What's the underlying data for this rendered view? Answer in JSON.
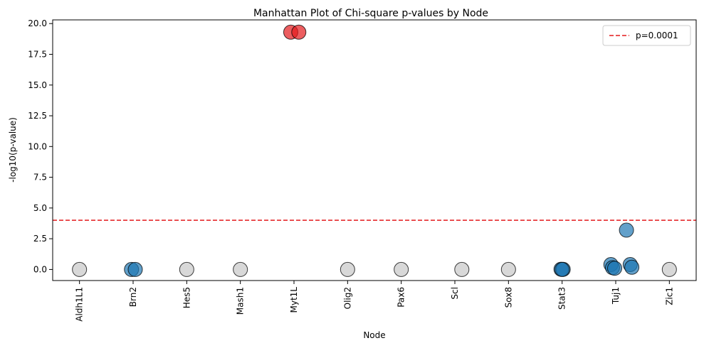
{
  "chart_data": {
    "type": "scatter",
    "title": "Manhattan Plot of Chi-square p-values by Node",
    "xlabel": "Node",
    "ylabel": "-log10(p-value)",
    "categories": [
      "Aldh1L1",
      "Brn2",
      "Hes5",
      "Mash1",
      "Myt1L",
      "Olig2",
      "Pax6",
      "Scl",
      "Sox8",
      "Stat3",
      "Tuj1",
      "Zic1"
    ],
    "ylim": [
      -0.9,
      20.3
    ],
    "yticks": [
      0.0,
      2.5,
      5.0,
      7.5,
      10.0,
      12.5,
      15.0,
      17.5,
      20.0
    ],
    "ytick_labels": [
      "0.0",
      "2.5",
      "5.0",
      "7.5",
      "10.0",
      "12.5",
      "15.0",
      "17.5",
      "20.0"
    ],
    "threshold": {
      "value": 4.0,
      "label": "p=0.0001",
      "color": "#e31a1c"
    },
    "legend_position": "top-right",
    "grid": false,
    "colors": {
      "significant": "#e41a1c",
      "nominal": "#1f77b4",
      "nonsignificant": "#c8c8c8"
    },
    "points": [
      {
        "category": "Aldh1L1",
        "offset": 0.0,
        "y": 0.0,
        "group": "nonsignificant"
      },
      {
        "category": "Brn2",
        "offset": -0.03,
        "y": 0.0,
        "group": "nominal"
      },
      {
        "category": "Brn2",
        "offset": 0.04,
        "y": 0.0,
        "group": "nominal"
      },
      {
        "category": "Hes5",
        "offset": 0.0,
        "y": 0.0,
        "group": "nonsignificant"
      },
      {
        "category": "Mash1",
        "offset": 0.0,
        "y": 0.0,
        "group": "nonsignificant"
      },
      {
        "category": "Myt1L",
        "offset": -0.06,
        "y": 19.3,
        "group": "significant"
      },
      {
        "category": "Myt1L",
        "offset": 0.09,
        "y": 19.3,
        "group": "significant"
      },
      {
        "category": "Olig2",
        "offset": 0.0,
        "y": 0.0,
        "group": "nonsignificant"
      },
      {
        "category": "Pax6",
        "offset": 0.0,
        "y": 0.0,
        "group": "nonsignificant"
      },
      {
        "category": "Scl",
        "offset": 0.13,
        "y": 0.0,
        "group": "nonsignificant"
      },
      {
        "category": "Sox8",
        "offset": 0.0,
        "y": 0.0,
        "group": "nonsignificant"
      },
      {
        "category": "Stat3",
        "offset": -0.02,
        "y": 0.02,
        "group": "nominal"
      },
      {
        "category": "Stat3",
        "offset": 0.02,
        "y": 0.01,
        "group": "nominal"
      },
      {
        "category": "Stat3",
        "offset": 0.0,
        "y": 0.0,
        "group": "nominal"
      },
      {
        "category": "Tuj1",
        "offset": -0.09,
        "y": 0.4,
        "group": "nominal"
      },
      {
        "category": "Tuj1",
        "offset": 0.2,
        "y": 3.2,
        "group": "nominal"
      },
      {
        "category": "Tuj1",
        "offset": 0.27,
        "y": 0.4,
        "group": "nominal"
      },
      {
        "category": "Tuj1",
        "offset": -0.06,
        "y": 0.15,
        "group": "nominal"
      },
      {
        "category": "Tuj1",
        "offset": 0.3,
        "y": 0.18,
        "group": "nominal"
      },
      {
        "category": "Tuj1",
        "offset": -0.02,
        "y": 0.1,
        "group": "nominal"
      },
      {
        "category": "Zic1",
        "offset": 0.0,
        "y": 0.0,
        "group": "nonsignificant"
      }
    ]
  }
}
